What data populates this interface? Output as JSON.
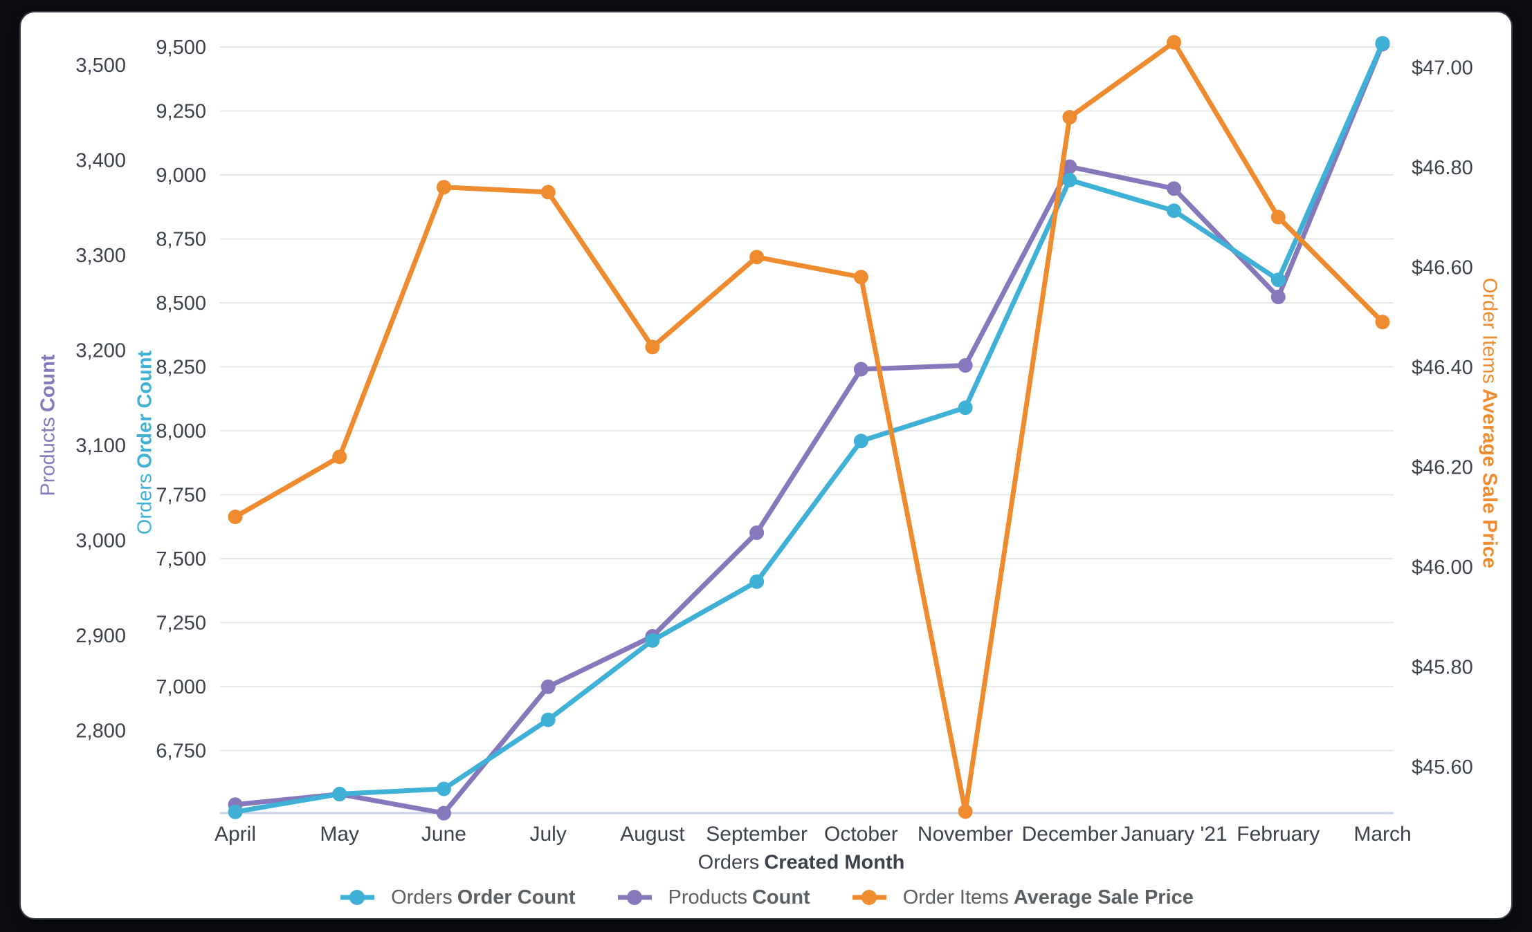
{
  "chart_data": {
    "type": "line",
    "title": "",
    "categories": [
      "April",
      "May",
      "June",
      "July",
      "August",
      "September",
      "October",
      "November",
      "December",
      "January '21",
      "February",
      "March"
    ],
    "xlabel_prefix": "Orders",
    "xlabel_bold": "Created Month",
    "grid": true,
    "legend_position": "bottom",
    "series": [
      {
        "id": "orders",
        "label_prefix": "Orders",
        "label_bold": "Order Count",
        "color": "#3FB1D7",
        "axis": "left_inner",
        "values": [
          6510,
          6580,
          6600,
          6870,
          7180,
          7410,
          7960,
          8090,
          8980,
          8860,
          8590,
          9515
        ]
      },
      {
        "id": "products",
        "label_prefix": "Products",
        "label_bold": "Count",
        "color": "#8678BB",
        "axis": "left_outer",
        "values": [
          2722,
          2733,
          2713,
          2846,
          2899,
          3008,
          3180,
          3184,
          3393,
          3370,
          3256,
          3522
        ]
      },
      {
        "id": "price",
        "label_prefix": "Order Items",
        "label_bold": "Average Sale Price",
        "color": "#EE8B2E",
        "axis": "right",
        "values": [
          46.1,
          46.22,
          46.76,
          46.75,
          46.44,
          46.62,
          46.58,
          45.51,
          46.9,
          47.05,
          46.7,
          46.49
        ]
      }
    ],
    "axes": {
      "left_outer": {
        "title_prefix": "Products",
        "title_bold": "Count",
        "color": "#8678BB",
        "tick_labels": [
          "3,500",
          "3,400",
          "3,300",
          "3,200",
          "3,100",
          "3,000",
          "2,900",
          "2,800"
        ],
        "tick_values": [
          3500,
          3400,
          3300,
          3200,
          3100,
          3000,
          2900,
          2800
        ],
        "range_approx": [
          2712,
          3535
        ]
      },
      "left_inner": {
        "title_prefix": "Orders",
        "title_bold": "Order Count",
        "color": "#3FB1D7",
        "tick_labels": [
          "9,500",
          "9,250",
          "9,000",
          "8,750",
          "8,500",
          "8,250",
          "8,000",
          "7,750",
          "7,500",
          "7,250",
          "7,000",
          "6,750"
        ],
        "tick_values": [
          9500,
          9250,
          9000,
          8750,
          8500,
          8250,
          8000,
          7750,
          7500,
          7250,
          7000,
          6750
        ],
        "range_approx": [
          6505,
          9560
        ]
      },
      "right": {
        "title_prefix": "Order Items",
        "title_bold": "Average Sale Price",
        "color": "#EE8B2E",
        "tick_labels": [
          "$47.00",
          "$46.80",
          "$46.60",
          "$46.40",
          "$46.20",
          "$46.00",
          "$45.80",
          "$45.60"
        ],
        "tick_values": [
          47.0,
          46.8,
          46.6,
          46.4,
          46.2,
          46.0,
          45.8,
          45.6
        ],
        "range_approx": [
          45.51,
          47.07
        ]
      }
    },
    "colors": {
      "gridline": "#E8E8E8",
      "baseline": "#C7D1E8",
      "tick_text": "#3C424B",
      "legend_text": "#5B6064"
    }
  }
}
